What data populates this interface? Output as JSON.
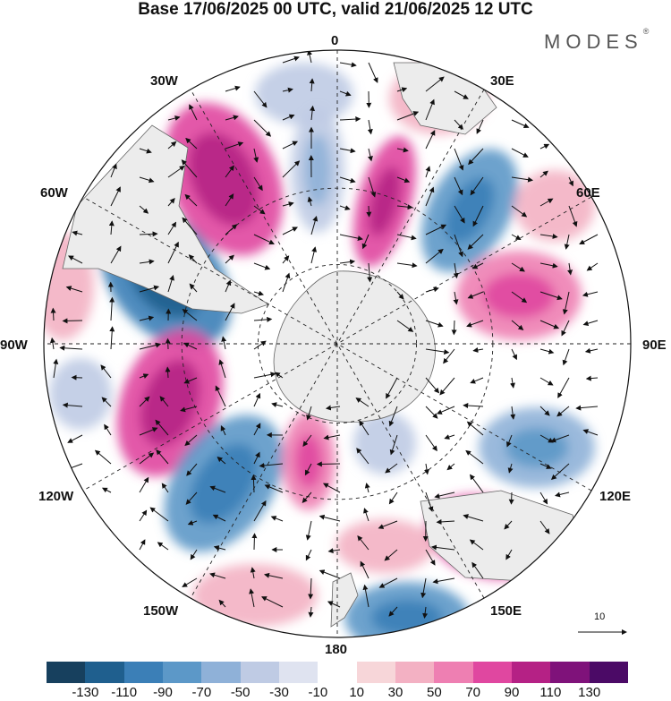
{
  "header": {
    "title": "Base 17/06/2025 00 UTC, valid 21/06/2025 12 UTC",
    "brand": "MODES",
    "brand_mark": "®"
  },
  "map": {
    "projection": "south polar stereographic",
    "longitude_labels": {
      "lon_0": "0",
      "lon_30e": "30E",
      "lon_60e": "60E",
      "lon_90e": "90E",
      "lon_120e": "120E",
      "lon_150e": "150E",
      "lon_180": "180",
      "lon_150w": "150W",
      "lon_120w": "120W",
      "lon_90w": "90W",
      "lon_60w": "60W",
      "lon_30w": "30W"
    },
    "reference_vector": "10"
  },
  "colorbar": {
    "ticks": [
      "-130",
      "-110",
      "-90",
      "-70",
      "-50",
      "-30",
      "-10",
      "10",
      "30",
      "50",
      "70",
      "90",
      "110",
      "130"
    ],
    "colors": [
      "#17405e",
      "#1f5f8e",
      "#3b7fb7",
      "#5c98c8",
      "#8fb1d8",
      "#bfcbe4",
      "#dfe3f0",
      "#ffffff",
      "#f7d6d9",
      "#f3b1c3",
      "#ee7fb2",
      "#e047a0",
      "#b52185",
      "#7f127a",
      "#4b0a66"
    ]
  }
}
